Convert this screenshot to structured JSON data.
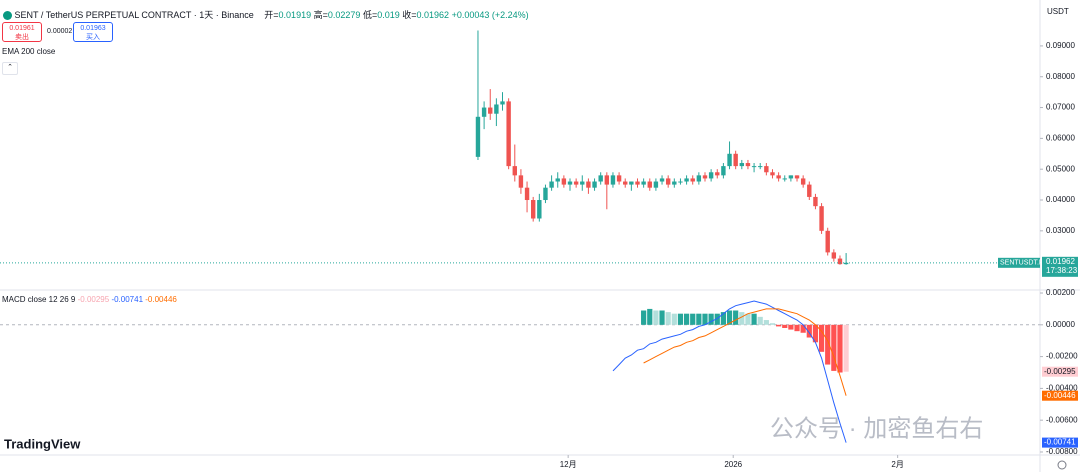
{
  "header": {
    "symbol": "SENT / TetherUS PERPETUAL CONTRACT · 1天 · Binance",
    "o_label": "开=",
    "h_label": "高=",
    "l_label": "低=",
    "c_label": "收=",
    "change": "+0.00043",
    "change_pct": "(+2.24%)",
    "sell_price": 0.01961,
    "sell": "卖出",
    "spread": 2e-05,
    "buy_price": 0.01963,
    "buy": "买入",
    "indicator": "EMA 200 close",
    "currency": "USDT",
    "symbol_badge": "SENTUSDT.P",
    "countdown": "17:38:23",
    "logo": "TradingView",
    "watermark": "公众号 · 加密鱼右右"
  },
  "chart_data": [
    {
      "type": "candlestick",
      "up_color": "#26a69a",
      "down_color": "#ef5350",
      "categories": [
        null,
        null,
        null,
        null,
        null,
        null,
        null,
        null,
        null,
        null,
        null,
        null,
        null,
        null,
        null,
        null,
        null,
        null,
        null,
        null,
        null,
        null,
        null,
        null,
        null,
        null,
        null,
        null,
        null,
        null,
        null,
        null,
        null,
        null,
        null,
        null,
        null,
        null,
        null,
        null,
        null,
        null,
        null,
        null,
        null,
        null,
        null,
        null,
        null,
        null,
        null,
        null,
        null,
        null,
        null,
        null,
        null,
        null,
        null,
        null,
        null
      ],
      "open": [
        0.054,
        0.067,
        0.07,
        0.068,
        0.071,
        0.072,
        0.051,
        0.048,
        0.044,
        0.04,
        0.034,
        0.04,
        0.044,
        0.046,
        0.047,
        0.045,
        0.046,
        0.045,
        0.046,
        0.044,
        0.046,
        0.048,
        0.045,
        0.048,
        0.046,
        0.045,
        0.046,
        0.045,
        0.046,
        0.044,
        0.046,
        0.047,
        0.045,
        0.046,
        0.046,
        0.047,
        0.046,
        0.048,
        0.047,
        0.049,
        0.048,
        0.051,
        0.055,
        0.051,
        0.052,
        0.051,
        0.051,
        0.051,
        0.049,
        0.048,
        0.047,
        0.047,
        0.048,
        0.047,
        0.045,
        0.041,
        0.038,
        0.03,
        0.023,
        0.021,
        0.01919
      ],
      "high": [
        0.095,
        0.072,
        0.076,
        0.073,
        0.075,
        0.073,
        0.058,
        0.05,
        0.046,
        0.041,
        0.042,
        0.045,
        0.048,
        0.049,
        0.048,
        0.047,
        0.047,
        0.048,
        0.047,
        0.047,
        0.049,
        0.049,
        0.049,
        0.049,
        0.047,
        0.046,
        0.047,
        0.047,
        0.047,
        0.047,
        0.048,
        0.048,
        0.047,
        0.047,
        0.048,
        0.048,
        0.049,
        0.049,
        0.05,
        0.05,
        0.052,
        0.059,
        0.056,
        0.053,
        0.053,
        0.052,
        0.052,
        0.052,
        0.05,
        0.049,
        0.048,
        0.048,
        0.048,
        0.048,
        0.046,
        0.042,
        0.039,
        0.031,
        0.024,
        0.022,
        0.02279
      ],
      "low": [
        0.053,
        0.063,
        0.066,
        0.064,
        0.069,
        0.05,
        0.046,
        0.042,
        0.036,
        0.033,
        0.033,
        0.039,
        0.043,
        0.044,
        0.044,
        0.043,
        0.044,
        0.043,
        0.042,
        0.043,
        0.045,
        0.037,
        0.044,
        0.045,
        0.044,
        0.043,
        0.044,
        0.044,
        0.043,
        0.043,
        0.045,
        0.044,
        0.044,
        0.045,
        0.045,
        0.045,
        0.045,
        0.046,
        0.046,
        0.047,
        0.047,
        0.05,
        0.05,
        0.05,
        0.05,
        0.049,
        0.05,
        0.048,
        0.047,
        0.046,
        0.046,
        0.046,
        0.046,
        0.044,
        0.04,
        0.037,
        0.029,
        0.022,
        0.02,
        0.019,
        0.019
      ],
      "close": [
        0.067,
        0.07,
        0.068,
        0.071,
        0.072,
        0.051,
        0.048,
        0.044,
        0.04,
        0.034,
        0.04,
        0.044,
        0.046,
        0.047,
        0.045,
        0.046,
        0.045,
        0.046,
        0.044,
        0.046,
        0.048,
        0.045,
        0.048,
        0.046,
        0.045,
        0.046,
        0.045,
        0.046,
        0.044,
        0.046,
        0.047,
        0.045,
        0.046,
        0.046,
        0.047,
        0.046,
        0.048,
        0.047,
        0.049,
        0.048,
        0.051,
        0.055,
        0.051,
        0.052,
        0.051,
        0.051,
        0.051,
        0.049,
        0.048,
        0.047,
        0.047,
        0.048,
        0.047,
        0.045,
        0.041,
        0.038,
        0.03,
        0.023,
        0.021,
        0.01919,
        0.01962
      ],
      "xlim": [
        -77.9,
        91.6
      ],
      "ylim": [
        0.0108,
        0.1049
      ],
      "yticks": [
        {
          "value": 0.03,
          "label": "0.03000"
        },
        {
          "value": 0.04,
          "label": "0.04000"
        },
        {
          "value": 0.05,
          "label": "0.05000"
        },
        {
          "value": 0.06,
          "label": "0.06000"
        },
        {
          "value": 0.07,
          "label": "0.07000"
        },
        {
          "value": 0.08,
          "label": "0.08000"
        },
        {
          "value": 0.09,
          "label": "0.09000"
        }
      ],
      "xticks": [
        {
          "value": 14.7,
          "label": "12月"
        },
        {
          "value": 41.6,
          "label": "2026"
        },
        {
          "value": 68.4,
          "label": "2月"
        }
      ]
    },
    {
      "type": "macd",
      "title": "MACD close 12 26 9",
      "xlim": [
        -77.9,
        91.6
      ],
      "ylim": [
        -0.00819,
        0.00219
      ],
      "yticks": [
        {
          "value": 0.002,
          "label": "0.00200"
        },
        {
          "value": 0,
          "label": "0.00000"
        },
        {
          "value": -0.002,
          "label": "-0.00200"
        },
        {
          "value": -0.004,
          "label": "-0.00400"
        },
        {
          "value": -0.006,
          "label": "-0.00600"
        },
        {
          "value": -0.008,
          "label": "-0.00800"
        }
      ],
      "histogram_colors": [
        "#26a69a",
        "#b2dfdb",
        "#ff5252",
        "#ffcdd2"
      ],
      "series": [
        {
          "name": "Histogram",
          "type": "bar",
          "values": [
            null,
            null,
            null,
            null,
            null,
            null,
            null,
            null,
            null,
            null,
            null,
            null,
            null,
            null,
            null,
            null,
            null,
            null,
            null,
            null,
            null,
            null,
            null,
            null,
            null,
            null,
            null,
            0.0009,
            0.001,
            0.0009,
            0.0009,
            0.0008,
            0.0007,
            0.0007,
            0.0007,
            0.0007,
            0.0007,
            0.0007,
            0.0007,
            0.0007,
            0.0008,
            0.0009,
            0.0009,
            0.0008,
            0.0007,
            0.0007,
            0.0005,
            0.0003,
            0.0001,
            -0.0001,
            -0.0002,
            -0.0003,
            -0.0004,
            -0.0005,
            -0.0008,
            -0.0011,
            -0.0017,
            -0.0025,
            -0.0029,
            -0.003,
            -0.00295
          ]
        },
        {
          "name": "MACD",
          "type": "line",
          "color": "#2962ff",
          "values": [
            null,
            null,
            null,
            null,
            null,
            null,
            null,
            null,
            null,
            null,
            null,
            null,
            null,
            null,
            null,
            null,
            null,
            null,
            null,
            null,
            null,
            null,
            -0.0029,
            -0.0025,
            -0.0021,
            -0.0019,
            -0.0016,
            -0.0015,
            -0.0012,
            -0.0011,
            -0.0009,
            -0.0008,
            -0.0007,
            -0.0006,
            -0.0004,
            -0.0003,
            -0.0001,
            0.0,
            0.0002,
            0.0004,
            0.0007,
            0.001,
            0.0012,
            0.0013,
            0.0014,
            0.0015,
            0.0014,
            0.0013,
            0.0011,
            0.0009,
            0.0007,
            0.0005,
            0.0003,
            0.0,
            -0.0005,
            -0.0011,
            -0.0021,
            -0.0035,
            -0.0049,
            -0.0062,
            -0.00741
          ]
        },
        {
          "name": "Signal",
          "type": "line",
          "color": "#ff6d00",
          "values": [
            null,
            null,
            null,
            null,
            null,
            null,
            null,
            null,
            null,
            null,
            null,
            null,
            null,
            null,
            null,
            null,
            null,
            null,
            null,
            null,
            null,
            null,
            null,
            null,
            null,
            null,
            null,
            -0.0024,
            -0.0022,
            -0.002,
            -0.0018,
            -0.0016,
            -0.0014,
            -0.0013,
            -0.0011,
            -0.001,
            -0.0008,
            -0.0007,
            -0.0005,
            -0.0003,
            -0.0001,
            0.0001,
            0.0003,
            0.0005,
            0.0007,
            0.0008,
            0.0009,
            0.001,
            0.001,
            0.001,
            0.0009,
            0.0008,
            0.0007,
            0.0005,
            0.0003,
            0.0,
            -0.0004,
            -0.001,
            -0.002,
            -0.0032,
            -0.00446
          ]
        }
      ]
    }
  ]
}
